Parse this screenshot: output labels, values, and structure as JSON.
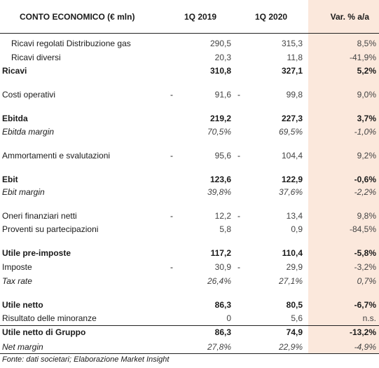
{
  "header": {
    "label": "CONTO ECONOMICO (€ mln)",
    "col1": "1Q 2019",
    "col2": "1Q 2020",
    "col3": "Var. % a/a"
  },
  "rows": [
    {
      "label": "Ricavi regolati Distribuzione gas",
      "v1": "290,5",
      "v2": "315,3",
      "v3": "8,5%",
      "dash1": "",
      "dash2": ""
    },
    {
      "label": "Ricavi diversi",
      "v1": "20,3",
      "v2": "11,8",
      "v3": "-41,9%",
      "dash1": "",
      "dash2": ""
    },
    {
      "label": "Ricavi",
      "v1": "310,8",
      "v2": "327,1",
      "v3": "5,2%",
      "dash1": "",
      "dash2": ""
    },
    {
      "label": "Costi operativi",
      "v1": "91,6",
      "v2": "99,8",
      "v3": "9,0%",
      "dash1": "-",
      "dash2": "-"
    },
    {
      "label": "Ebitda",
      "v1": "219,2",
      "v2": "227,3",
      "v3": "3,7%",
      "dash1": "",
      "dash2": ""
    },
    {
      "label": "Ebitda margin",
      "v1": "70,5%",
      "v2": "69,5%",
      "v3": "-1,0%",
      "dash1": "",
      "dash2": ""
    },
    {
      "label": "Ammortamenti e svalutazioni",
      "v1": "95,6",
      "v2": "104,4",
      "v3": "9,2%",
      "dash1": "-",
      "dash2": "-"
    },
    {
      "label": "Ebit",
      "v1": "123,6",
      "v2": "122,9",
      "v3": "-0,6%",
      "dash1": "",
      "dash2": ""
    },
    {
      "label": "Ebit margin",
      "v1": "39,8%",
      "v2": "37,6%",
      "v3": "-2,2%",
      "dash1": "",
      "dash2": ""
    },
    {
      "label": "Oneri finanziari netti",
      "v1": "12,2",
      "v2": "13,4",
      "v3": "9,8%",
      "dash1": "-",
      "dash2": "-"
    },
    {
      "label": "Proventi su partecipazioni",
      "v1": "5,8",
      "v2": "0,9",
      "v3": "-84,5%",
      "dash1": "",
      "dash2": ""
    },
    {
      "label": "Utile pre-imposte",
      "v1": "117,2",
      "v2": "110,4",
      "v3": "-5,8%",
      "dash1": "",
      "dash2": ""
    },
    {
      "label": "Imposte",
      "v1": "30,9",
      "v2": "29,9",
      "v3": "-3,2%",
      "dash1": "-",
      "dash2": "-"
    },
    {
      "label": "Tax rate",
      "v1": "26,4%",
      "v2": "27,1%",
      "v3": "0,7%",
      "dash1": "",
      "dash2": ""
    },
    {
      "label": "Utile netto",
      "v1": "86,3",
      "v2": "80,5",
      "v3": "-6,7%",
      "dash1": "",
      "dash2": ""
    },
    {
      "label": "Risultato delle minoranze",
      "v1": "0",
      "v2": "5,6",
      "v3": "n.s.",
      "dash1": "",
      "dash2": ""
    },
    {
      "label": "Utile netto di Gruppo",
      "v1": "86,3",
      "v2": "74,9",
      "v3": "-13,2%",
      "dash1": "",
      "dash2": ""
    },
    {
      "label": "Net margin",
      "v1": "27,8%",
      "v2": "22,9%",
      "v3": "-4,9%",
      "dash1": "",
      "dash2": ""
    }
  ],
  "source": "Fonte: dati societari; Elaborazione Market Insight"
}
